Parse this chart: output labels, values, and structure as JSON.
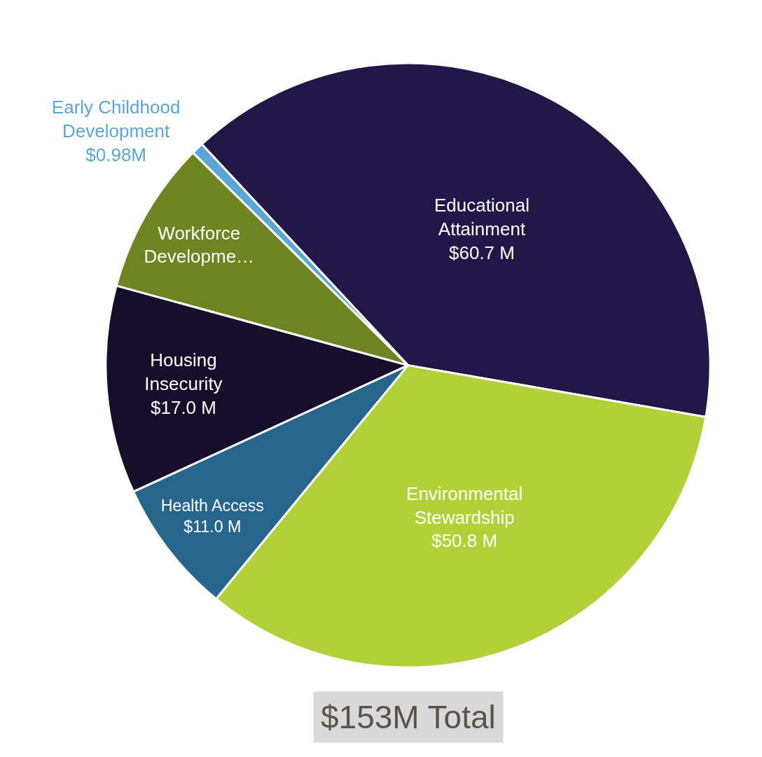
{
  "chart_data": {
    "type": "pie",
    "categories": [
      "Educational Attainment",
      "Environmental Stewardship",
      "Health Access",
      "Housing Insecurity",
      "Workforce Developme…",
      "Early Childhood Development"
    ],
    "values": [
      60.7,
      50.8,
      11.0,
      17.0,
      12.5,
      0.98
    ],
    "value_labels": [
      "$60.7 M",
      "$50.8 M",
      "$11.0 M",
      "$17.0 M",
      null,
      "$0.98M"
    ],
    "colors": [
      "#211848",
      "#b0d238",
      "#28658c",
      "#160f2b",
      "#6e8421",
      "#5aa6d6"
    ],
    "annotations": [
      "$153M Total"
    ],
    "legend": false
  }
}
